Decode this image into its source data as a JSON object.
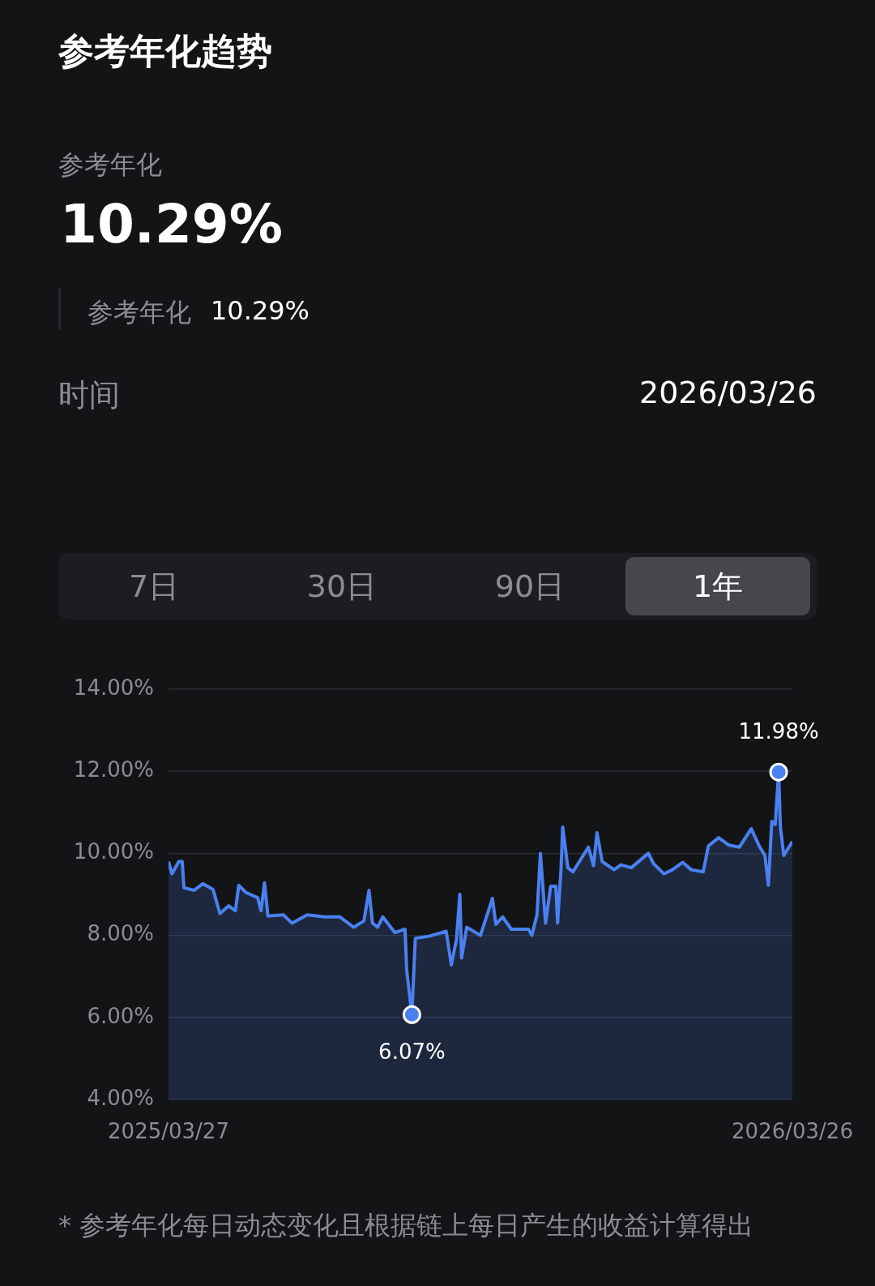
{
  "chart_data": {
    "type": "area",
    "title": "参考年化趋势",
    "annotations": [
      "参考年化",
      "10.29%",
      "参考年化",
      "10.29%",
      "时间",
      "2026/03/26",
      "7日",
      "30日",
      "90日",
      "1年",
      "* 参考年化每日动态变化且根据链上每日产生的收益计算得出",
      {
        "text": "6.07%",
        "x": "2025-08-16",
        "y": 6.07
      },
      {
        "text": "11.98%",
        "x": "2026-03-18",
        "y": 11.98
      }
    ],
    "x": [
      "2025-03-27",
      "2025-03-29",
      "2025-04-02",
      "2025-04-04",
      "2025-04-05",
      "2025-04-11",
      "2025-04-16",
      "2025-04-22",
      "2025-04-26",
      "2025-05-01",
      "2025-05-05",
      "2025-05-07",
      "2025-05-11",
      "2025-05-18",
      "2025-05-20",
      "2025-05-22",
      "2025-05-24",
      "2025-06-02",
      "2025-06-07",
      "2025-06-16",
      "2025-06-26",
      "2025-07-05",
      "2025-07-13",
      "2025-07-19",
      "2025-07-22",
      "2025-07-24",
      "2025-07-27",
      "2025-07-30",
      "2025-08-06",
      "2025-08-12",
      "2025-08-13",
      "2025-08-16",
      "2025-08-18",
      "2025-08-26",
      "2025-09-05",
      "2025-09-08",
      "2025-09-11",
      "2025-09-13",
      "2025-09-14",
      "2025-09-17",
      "2025-09-25",
      "2025-10-02",
      "2025-10-04",
      "2025-10-08",
      "2025-10-13",
      "2025-10-23",
      "2025-10-25",
      "2025-10-28",
      "2025-10-30",
      "2025-11-02",
      "2025-11-05",
      "2025-11-08",
      "2025-11-09",
      "2025-11-11",
      "2025-11-12",
      "2025-11-15",
      "2025-11-18",
      "2025-11-21",
      "2025-11-27",
      "2025-11-30",
      "2025-12-02",
      "2025-12-05",
      "2025-12-12",
      "2025-12-16",
      "2025-12-22",
      "2026-01-01",
      "2026-01-04",
      "2026-01-10",
      "2026-01-15",
      "2026-01-21",
      "2026-01-26",
      "2026-02-02",
      "2026-02-05",
      "2026-02-11",
      "2026-02-17",
      "2026-02-23",
      "2026-03-02",
      "2026-03-07",
      "2026-03-10",
      "2026-03-12",
      "2026-03-14",
      "2026-03-16",
      "2026-03-18",
      "2026-03-19",
      "2026-03-21",
      "2026-03-26"
    ],
    "series": [
      {
        "color": "#4a80f0",
        "values": [
          9.8,
          9.5,
          9.8,
          9.8,
          9.16,
          9.1,
          9.26,
          9.12,
          8.53,
          8.72,
          8.6,
          9.22,
          9.05,
          8.92,
          8.6,
          9.28,
          8.47,
          8.5,
          8.3,
          8.5,
          8.45,
          8.45,
          8.2,
          8.35,
          9.1,
          8.3,
          8.2,
          8.45,
          8.07,
          8.15,
          7.14,
          6.07,
          7.93,
          7.98,
          8.1,
          7.28,
          7.9,
          9.0,
          7.45,
          8.2,
          8.0,
          8.9,
          8.27,
          8.45,
          8.15,
          8.15,
          8.0,
          8.5,
          10.0,
          8.3,
          9.2,
          9.2,
          8.3,
          9.6,
          10.64,
          9.65,
          9.55,
          9.75,
          10.15,
          9.7,
          10.5,
          9.8,
          9.6,
          9.72,
          9.65,
          10.0,
          9.75,
          9.5,
          9.6,
          9.78,
          9.6,
          9.55,
          10.18,
          10.38,
          10.2,
          10.15,
          10.6,
          10.15,
          9.95,
          9.22,
          10.78,
          10.7,
          11.98,
          10.65,
          9.95,
          10.29
        ]
      }
    ],
    "xlim": [
      "2025-03-27",
      "2026-03-26"
    ],
    "xticks": [
      {
        "value": "2025-03-27",
        "label": "2025/03/27"
      },
      {
        "value": "2026-03-26",
        "label": "2026/03/26"
      }
    ],
    "ylim": [
      4,
      14
    ],
    "yticks": [
      {
        "value": 4,
        "label": "4.00%"
      },
      {
        "value": 6,
        "label": "6.00%"
      },
      {
        "value": 8,
        "label": "8.00%"
      },
      {
        "value": 10,
        "label": "10.00%"
      },
      {
        "value": 12,
        "label": "12.00%"
      },
      {
        "value": 14,
        "label": "14.00%"
      }
    ],
    "grid": "y",
    "legend": false,
    "marker": "none",
    "line_style": "solid"
  }
}
